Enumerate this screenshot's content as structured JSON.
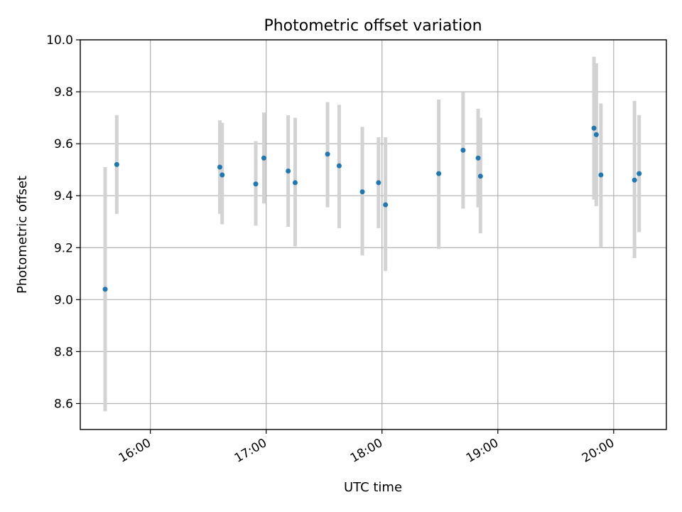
{
  "chart_data": {
    "type": "scatter",
    "title": "Photometric offset variation",
    "xlabel": "UTC time",
    "ylabel": "Photometric offset",
    "x_unit": "hours since 00:00 UTC",
    "xlim": [
      15.395,
      20.455
    ],
    "ylim": [
      8.5,
      10.0
    ],
    "x_ticks": [
      {
        "value": 16,
        "label": "16:00"
      },
      {
        "value": 17,
        "label": "17:00"
      },
      {
        "value": 18,
        "label": "18:00"
      },
      {
        "value": 19,
        "label": "19:00"
      },
      {
        "value": 20,
        "label": "20:00"
      }
    ],
    "y_ticks": [
      {
        "value": 8.6,
        "label": "8.6"
      },
      {
        "value": 8.8,
        "label": "8.8"
      },
      {
        "value": 9.0,
        "label": "9.0"
      },
      {
        "value": 9.2,
        "label": "9.2"
      },
      {
        "value": 9.4,
        "label": "9.4"
      },
      {
        "value": 9.6,
        "label": "9.6"
      },
      {
        "value": 9.8,
        "label": "9.8"
      },
      {
        "value": 10.0,
        "label": "10.0"
      }
    ],
    "grid": true,
    "series": [
      {
        "name": "offset",
        "marker_color": "#1f77b4",
        "errorbar_color": "#d3d3d3",
        "points": [
          {
            "x": 15.61,
            "y": 9.04,
            "lo": 8.57,
            "hi": 9.51
          },
          {
            "x": 15.71,
            "y": 9.52,
            "lo": 9.33,
            "hi": 9.71
          },
          {
            "x": 16.6,
            "y": 9.51,
            "lo": 9.33,
            "hi": 9.69
          },
          {
            "x": 16.62,
            "y": 9.48,
            "lo": 9.29,
            "hi": 9.68
          },
          {
            "x": 16.91,
            "y": 9.445,
            "lo": 9.285,
            "hi": 9.61
          },
          {
            "x": 16.98,
            "y": 9.545,
            "lo": 9.37,
            "hi": 9.72
          },
          {
            "x": 17.19,
            "y": 9.495,
            "lo": 9.28,
            "hi": 9.71
          },
          {
            "x": 17.25,
            "y": 9.45,
            "lo": 9.205,
            "hi": 9.7
          },
          {
            "x": 17.53,
            "y": 9.56,
            "lo": 9.355,
            "hi": 9.76
          },
          {
            "x": 17.63,
            "y": 9.515,
            "lo": 9.275,
            "hi": 9.75
          },
          {
            "x": 17.83,
            "y": 9.415,
            "lo": 9.17,
            "hi": 9.665
          },
          {
            "x": 17.97,
            "y": 9.45,
            "lo": 9.275,
            "hi": 9.625
          },
          {
            "x": 18.03,
            "y": 9.365,
            "lo": 9.11,
            "hi": 9.625
          },
          {
            "x": 18.49,
            "y": 9.485,
            "lo": 9.195,
            "hi": 9.77
          },
          {
            "x": 18.7,
            "y": 9.575,
            "lo": 9.35,
            "hi": 9.8
          },
          {
            "x": 18.83,
            "y": 9.545,
            "lo": 9.355,
            "hi": 9.735
          },
          {
            "x": 18.85,
            "y": 9.475,
            "lo": 9.255,
            "hi": 9.7
          },
          {
            "x": 19.83,
            "y": 9.66,
            "lo": 9.385,
            "hi": 9.935
          },
          {
            "x": 19.85,
            "y": 9.635,
            "lo": 9.36,
            "hi": 9.91
          },
          {
            "x": 19.89,
            "y": 9.48,
            "lo": 9.2,
            "hi": 9.755
          },
          {
            "x": 20.18,
            "y": 9.46,
            "lo": 9.16,
            "hi": 9.765
          },
          {
            "x": 20.22,
            "y": 9.485,
            "lo": 9.26,
            "hi": 9.71
          }
        ]
      }
    ]
  }
}
